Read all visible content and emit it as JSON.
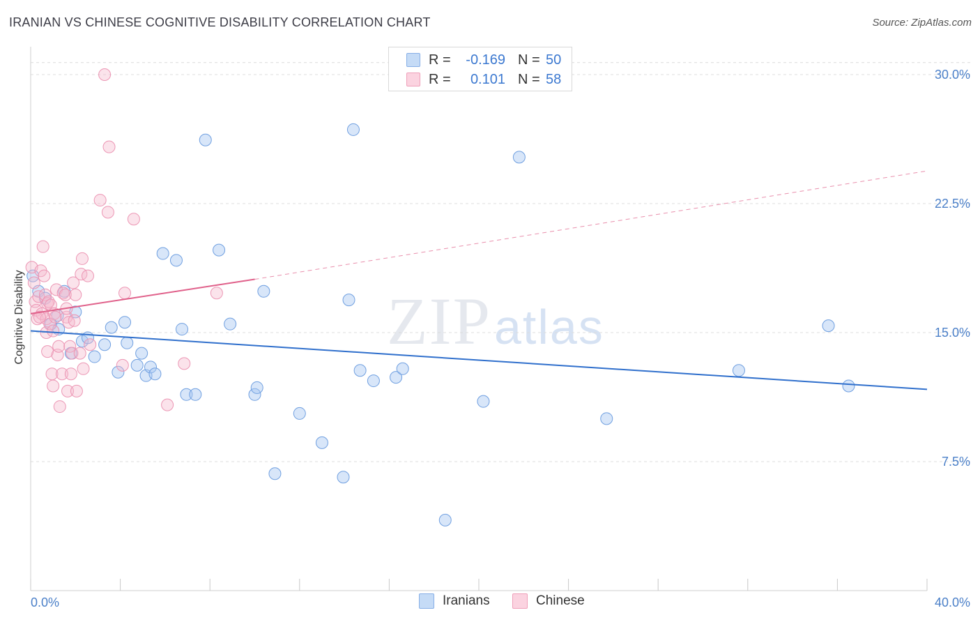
{
  "header": {
    "title": "IRANIAN VS CHINESE COGNITIVE DISABILITY CORRELATION CHART",
    "source": "Source: ZipAtlas.com"
  },
  "watermark": {
    "zip": "ZIP",
    "atlas": "atlas"
  },
  "legend": {
    "rows": [
      {
        "r_key": "R =",
        "r_value": "-0.169",
        "n_key": "N =",
        "n_value": "50",
        "color": "#a9c8f2"
      },
      {
        "r_key": "R =",
        "r_value": "0.101",
        "n_key": "N =",
        "n_value": "58",
        "color": "#f6b8cc"
      }
    ]
  },
  "bottom_legend": [
    {
      "label": "Iranians",
      "color": "#a9c8f2"
    },
    {
      "label": "Chinese",
      "color": "#f6b8cc"
    }
  ],
  "chart_data": {
    "type": "scatter",
    "title": "IRANIAN VS CHINESE COGNITIVE DISABILITY CORRELATION CHART",
    "xlabel": "",
    "ylabel": "Cognitive Disability",
    "xlim": [
      0,
      40
    ],
    "ylim": [
      0,
      31.5
    ],
    "x_tick_labels": [
      {
        "value": 0,
        "label": "0.0%"
      },
      {
        "value": 40,
        "label": "40.0%"
      }
    ],
    "y_ticks": [
      {
        "value": 7.5,
        "label": "7.5%"
      },
      {
        "value": 15,
        "label": "15.0%"
      },
      {
        "value": 22.5,
        "label": "22.5%"
      },
      {
        "value": 30,
        "label": "30.0%"
      }
    ],
    "series": [
      {
        "name": "Iranians",
        "color": "#6fa0e0",
        "trend": {
          "x": [
            0,
            40
          ],
          "y": [
            15.1,
            11.7
          ],
          "style": "solid",
          "color": "#2f6fcc"
        },
        "points": [
          [
            0.1,
            18.3
          ],
          [
            0.35,
            17.4
          ],
          [
            0.65,
            17.0
          ],
          [
            1.2,
            16.0
          ],
          [
            0.9,
            15.5
          ],
          [
            1.25,
            15.2
          ],
          [
            1.5,
            17.4
          ],
          [
            2.0,
            16.2
          ],
          [
            2.3,
            14.5
          ],
          [
            2.55,
            14.7
          ],
          [
            1.8,
            13.8
          ],
          [
            2.85,
            13.6
          ],
          [
            3.3,
            14.3
          ],
          [
            3.6,
            15.3
          ],
          [
            4.2,
            15.6
          ],
          [
            4.3,
            14.4
          ],
          [
            3.9,
            12.7
          ],
          [
            4.75,
            13.1
          ],
          [
            4.95,
            13.8
          ],
          [
            5.15,
            12.5
          ],
          [
            5.35,
            13.0
          ],
          [
            5.55,
            12.6
          ],
          [
            5.9,
            19.6
          ],
          [
            6.5,
            19.2
          ],
          [
            6.75,
            15.2
          ],
          [
            6.95,
            11.4
          ],
          [
            7.35,
            11.4
          ],
          [
            7.8,
            26.2
          ],
          [
            8.4,
            19.8
          ],
          [
            8.9,
            15.5
          ],
          [
            10.0,
            11.4
          ],
          [
            10.1,
            11.8
          ],
          [
            10.4,
            17.4
          ],
          [
            10.9,
            6.8
          ],
          [
            12.0,
            10.3
          ],
          [
            13.0,
            8.6
          ],
          [
            13.95,
            6.6
          ],
          [
            14.2,
            16.9
          ],
          [
            14.4,
            26.8
          ],
          [
            14.7,
            12.8
          ],
          [
            15.3,
            12.2
          ],
          [
            16.3,
            12.4
          ],
          [
            16.6,
            12.9
          ],
          [
            18.5,
            4.1
          ],
          [
            20.2,
            11.0
          ],
          [
            21.8,
            25.2
          ],
          [
            25.7,
            10.0
          ],
          [
            31.6,
            12.8
          ],
          [
            35.6,
            15.4
          ],
          [
            36.5,
            11.9
          ]
        ]
      },
      {
        "name": "Chinese",
        "color": "#f0a0bb",
        "trend": {
          "x": [
            0,
            10.0
          ],
          "y": [
            16.1,
            18.1
          ],
          "style": "solid",
          "color": "#e0608a",
          "extension": {
            "x": [
              10.0,
              40
            ],
            "y": [
              18.1,
              24.4
            ],
            "style": "dashed"
          }
        },
        "points": [
          [
            0.05,
            18.8
          ],
          [
            0.15,
            17.9
          ],
          [
            0.2,
            16.8
          ],
          [
            0.25,
            16.3
          ],
          [
            0.3,
            15.8
          ],
          [
            0.35,
            17.1
          ],
          [
            0.45,
            18.6
          ],
          [
            0.5,
            16.1
          ],
          [
            0.55,
            20.0
          ],
          [
            0.6,
            18.3
          ],
          [
            0.65,
            17.2
          ],
          [
            0.7,
            15.8
          ],
          [
            0.75,
            16.7
          ],
          [
            0.7,
            15.0
          ],
          [
            0.75,
            13.9
          ],
          [
            0.8,
            16.8
          ],
          [
            0.85,
            15.5
          ],
          [
            0.9,
            16.6
          ],
          [
            0.95,
            12.6
          ],
          [
            1.0,
            11.9
          ],
          [
            1.05,
            16.1
          ],
          [
            1.1,
            15.9
          ],
          [
            1.15,
            17.5
          ],
          [
            1.2,
            13.7
          ],
          [
            1.25,
            14.2
          ],
          [
            1.3,
            10.7
          ],
          [
            1.4,
            12.6
          ],
          [
            1.45,
            17.3
          ],
          [
            1.55,
            17.2
          ],
          [
            1.6,
            15.9
          ],
          [
            1.65,
            11.6
          ],
          [
            1.7,
            15.6
          ],
          [
            1.75,
            14.2
          ],
          [
            1.8,
            12.6
          ],
          [
            1.85,
            13.8
          ],
          [
            1.9,
            17.9
          ],
          [
            1.95,
            15.7
          ],
          [
            2.0,
            17.2
          ],
          [
            2.05,
            11.6
          ],
          [
            2.2,
            13.8
          ],
          [
            2.25,
            18.4
          ],
          [
            2.3,
            19.3
          ],
          [
            2.35,
            12.9
          ],
          [
            2.55,
            18.3
          ],
          [
            2.65,
            14.3
          ],
          [
            3.1,
            22.7
          ],
          [
            3.3,
            30.0
          ],
          [
            3.45,
            22.0
          ],
          [
            3.5,
            25.8
          ],
          [
            4.1,
            13.1
          ],
          [
            4.2,
            17.3
          ],
          [
            4.6,
            21.6
          ],
          [
            6.1,
            10.8
          ],
          [
            6.85,
            13.2
          ],
          [
            8.3,
            17.3
          ],
          [
            1.6,
            16.4
          ],
          [
            0.4,
            15.9
          ],
          [
            1.0,
            15.1
          ]
        ]
      }
    ]
  }
}
